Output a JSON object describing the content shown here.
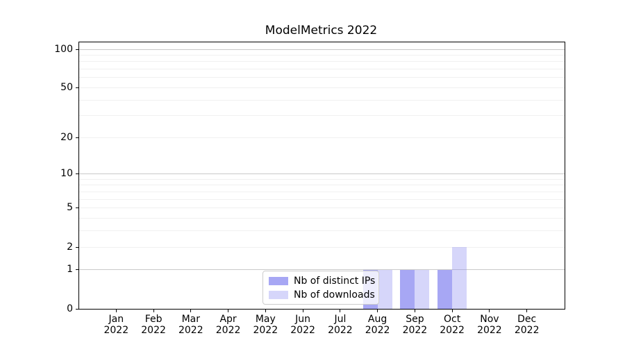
{
  "title": "ModelMetrics 2022",
  "legend": {
    "items": [
      {
        "label": "Nb of distinct IPs",
        "color": "rgba(138,138,240,0.75)"
      },
      {
        "label": "Nb of downloads",
        "color": "rgba(138,138,240,0.35)"
      }
    ]
  },
  "chart_data": {
    "type": "bar",
    "title": "ModelMetrics 2022",
    "categories": [
      "Jan 2022",
      "Feb 2022",
      "Mar 2022",
      "Apr 2022",
      "May 2022",
      "Jun 2022",
      "Jul 2022",
      "Aug 2022",
      "Sep 2022",
      "Oct 2022",
      "Nov 2022",
      "Dec 2022"
    ],
    "months": [
      "Jan",
      "Feb",
      "Mar",
      "Apr",
      "May",
      "Jun",
      "Jul",
      "Aug",
      "Sep",
      "Oct",
      "Nov",
      "Dec"
    ],
    "year_label": "2022",
    "series": [
      {
        "name": "Nb of distinct IPs",
        "color": "rgba(138,138,240,0.75)",
        "values": [
          0,
          0,
          0,
          0,
          0,
          0,
          0,
          1,
          1,
          1,
          0,
          0
        ]
      },
      {
        "name": "Nb of downloads",
        "color": "rgba(138,138,240,0.35)",
        "values": [
          0,
          0,
          0,
          0,
          0,
          0,
          0,
          1,
          1,
          2,
          0,
          0
        ]
      }
    ],
    "yticks": [
      0,
      1,
      2,
      5,
      10,
      20,
      50,
      100
    ],
    "grid_major": [
      1,
      10,
      100
    ],
    "grid_minor": [
      2,
      3,
      4,
      5,
      6,
      7,
      8,
      9,
      20,
      30,
      40,
      50,
      60,
      70,
      80,
      90
    ],
    "yscale": "log1p",
    "ylim": [
      0,
      113
    ],
    "xlabel": "",
    "ylabel": "",
    "grid": "horizontal",
    "legend_position": "lower-center-inside",
    "colors": {
      "grid_major": "#c9c9c9",
      "grid_minor": "#f0f0f0",
      "spine": "#000000",
      "text": "#000000"
    }
  }
}
